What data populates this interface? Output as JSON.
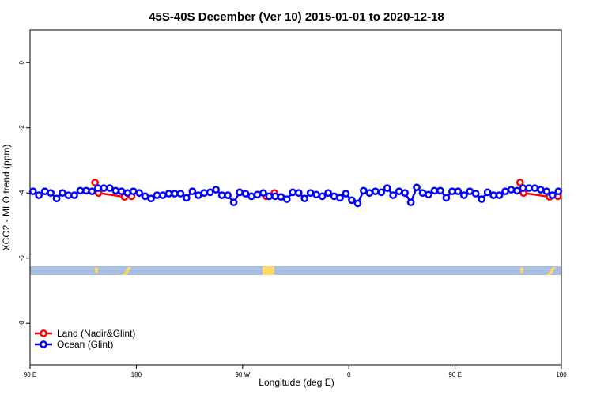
{
  "chart_data": {
    "type": "line",
    "title": "45S-40S December (Ver 10)   2015-01-01 to 2020-12-18",
    "x_label": "Longitude (deg E)",
    "y_label": "XCO2 - MLO trend (ppm)",
    "xlim": [
      90,
      540
    ],
    "ylim": [
      -9.28,
      1
    ],
    "xticks": [
      {
        "value": 90,
        "label": "90 E"
      },
      180,
      {
        "value": 270,
        "label": "90 W"
      },
      {
        "value": 360,
        "label": "0"
      },
      {
        "value": 450,
        "label": "90 E"
      },
      {
        "value": 540,
        "label": "180"
      }
    ],
    "yticks": [
      0,
      -2,
      -4,
      -6,
      -8
    ],
    "legend": "bottom-left",
    "series": [
      {
        "name": "Land (Nadir&Glint)",
        "color": "#ff0000",
        "x": [
          145,
          148,
          170,
          176,
          null,
          290,
          297,
          null,
          505,
          508,
          530,
          537
        ],
        "values": [
          -3.68,
          -4.0,
          -4.12,
          -4.1,
          null,
          -4.1,
          -4.0,
          null,
          -3.68,
          -4.0,
          -4.12,
          -4.1
        ]
      },
      {
        "name": "Ocean (Glint)",
        "color": "#0000ff",
        "x": [
          92.5,
          97.5,
          102.5,
          107.5,
          112.5,
          117.5,
          122.5,
          127.5,
          132.5,
          137.5,
          142.5,
          147.5,
          152.5,
          157.5,
          162.5,
          167.5,
          172.5,
          177.5,
          182.5,
          187.5,
          192.5,
          197.5,
          202.5,
          207.5,
          212.5,
          217.5,
          222.5,
          227.5,
          232.5,
          237.5,
          242.5,
          247.5,
          252.5,
          257.5,
          262.5,
          267.5,
          272.5,
          277.5,
          282.5,
          287.5,
          292.5,
          297.5,
          302.5,
          307.5,
          312.5,
          317.5,
          322.5,
          327.5,
          332.5,
          337.5,
          342.5,
          347.5,
          352.5,
          357.5,
          362.5,
          367.5,
          372.5,
          377.5,
          382.5,
          387.5,
          392.5,
          397.5,
          402.5,
          407.5,
          412.5,
          417.5,
          422.5,
          427.5,
          432.5,
          437.5,
          442.5,
          447.5,
          452.5,
          457.5,
          462.5,
          467.5,
          472.5,
          477.5,
          482.5,
          487.5,
          492.5,
          497.5,
          502.5,
          507.5,
          512.5,
          517.5,
          522.5,
          527.5,
          532.5,
          537.5
        ],
        "values": [
          -3.95,
          -4.07,
          -3.95,
          -4.0,
          -4.17,
          -4.0,
          -4.07,
          -4.07,
          -3.93,
          -3.93,
          -3.95,
          -3.85,
          -3.85,
          -3.85,
          -3.93,
          -3.95,
          -4.0,
          -3.95,
          -4.0,
          -4.1,
          -4.17,
          -4.07,
          -4.07,
          -4.02,
          -4.02,
          -4.02,
          -4.15,
          -3.95,
          -4.07,
          -4.0,
          -3.98,
          -3.9,
          -4.07,
          -4.07,
          -4.29,
          -3.98,
          -4.02,
          -4.1,
          -4.05,
          -4.0,
          -4.1,
          -4.1,
          -4.12,
          -4.19,
          -3.98,
          -4.0,
          -4.17,
          -4.0,
          -4.05,
          -4.1,
          -4.0,
          -4.1,
          -4.15,
          -4.02,
          -4.22,
          -4.32,
          -3.93,
          -4.0,
          -3.95,
          -3.98,
          -3.85,
          -4.07,
          -3.95,
          -4.0,
          -4.29,
          -3.83,
          -4.0,
          -4.05,
          -3.93,
          -3.93,
          -4.15,
          -3.95,
          -3.95,
          -4.07,
          -3.95,
          -4.02,
          -4.19,
          -3.98,
          -4.07,
          -4.07,
          -3.95,
          -3.9,
          -3.93,
          -3.85,
          -3.85,
          -3.85,
          -3.9,
          -3.95,
          -4.07,
          -3.95
        ]
      }
    ]
  }
}
